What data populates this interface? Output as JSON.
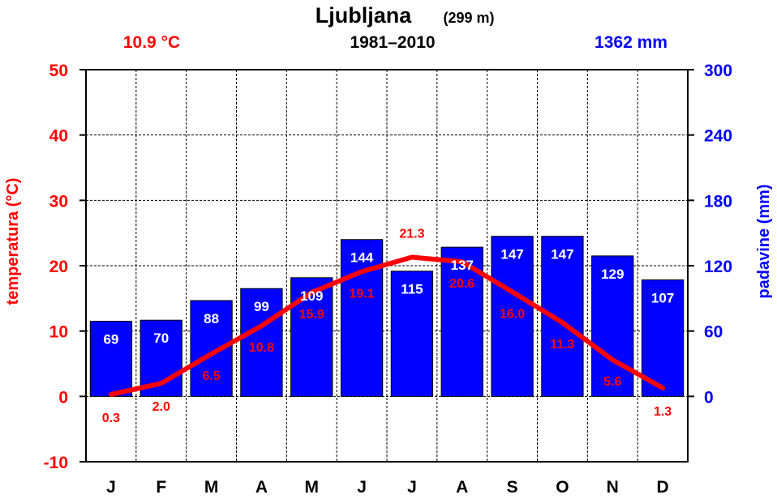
{
  "chart_data": {
    "type": "bar",
    "title": "Ljubljana",
    "elevation": "(299 m)",
    "period": "1981–2010",
    "annual_temperature": "10.9 °C",
    "annual_precipitation": "1362 mm",
    "categories": [
      "J",
      "F",
      "M",
      "A",
      "M",
      "J",
      "J",
      "A",
      "S",
      "O",
      "N",
      "D"
    ],
    "series": [
      {
        "type": "bar",
        "axis": "right",
        "values": [
          69,
          70,
          88,
          99,
          109,
          144,
          115,
          137,
          147,
          147,
          129,
          107
        ]
      },
      {
        "type": "line",
        "axis": "left",
        "values": [
          0.3,
          2.0,
          6.5,
          10.8,
          15.9,
          19.1,
          21.3,
          20.6,
          16.0,
          11.3,
          5.6,
          1.3
        ],
        "labels": [
          "0.3",
          "2.0",
          "6.5",
          "10.8",
          "15.9",
          "19.1",
          "21.3",
          "20.6",
          "16.0",
          "11.3",
          "5.6",
          "1.3"
        ]
      }
    ],
    "ylabel_left": "temperatura (°C)",
    "ylabel_right": "padavine (mm)",
    "ylim_left": [
      -10,
      50
    ],
    "ylim_right": [
      -60,
      300
    ],
    "yticks_left": [
      -10,
      0,
      10,
      20,
      30,
      40,
      50
    ],
    "yticks_right": [
      0,
      60,
      120,
      180,
      240,
      300
    ],
    "ytick_labels_left": [
      "-10",
      "0",
      "10",
      "20",
      "30",
      "40",
      "50"
    ],
    "ytick_labels_right": [
      "0",
      "60",
      "120",
      "180",
      "240",
      "300"
    ],
    "grid": true,
    "colors": {
      "temperature": "#ff0000",
      "precipitation": "#0000ff",
      "bar_outline": "#000000",
      "grid": "#000000"
    }
  }
}
